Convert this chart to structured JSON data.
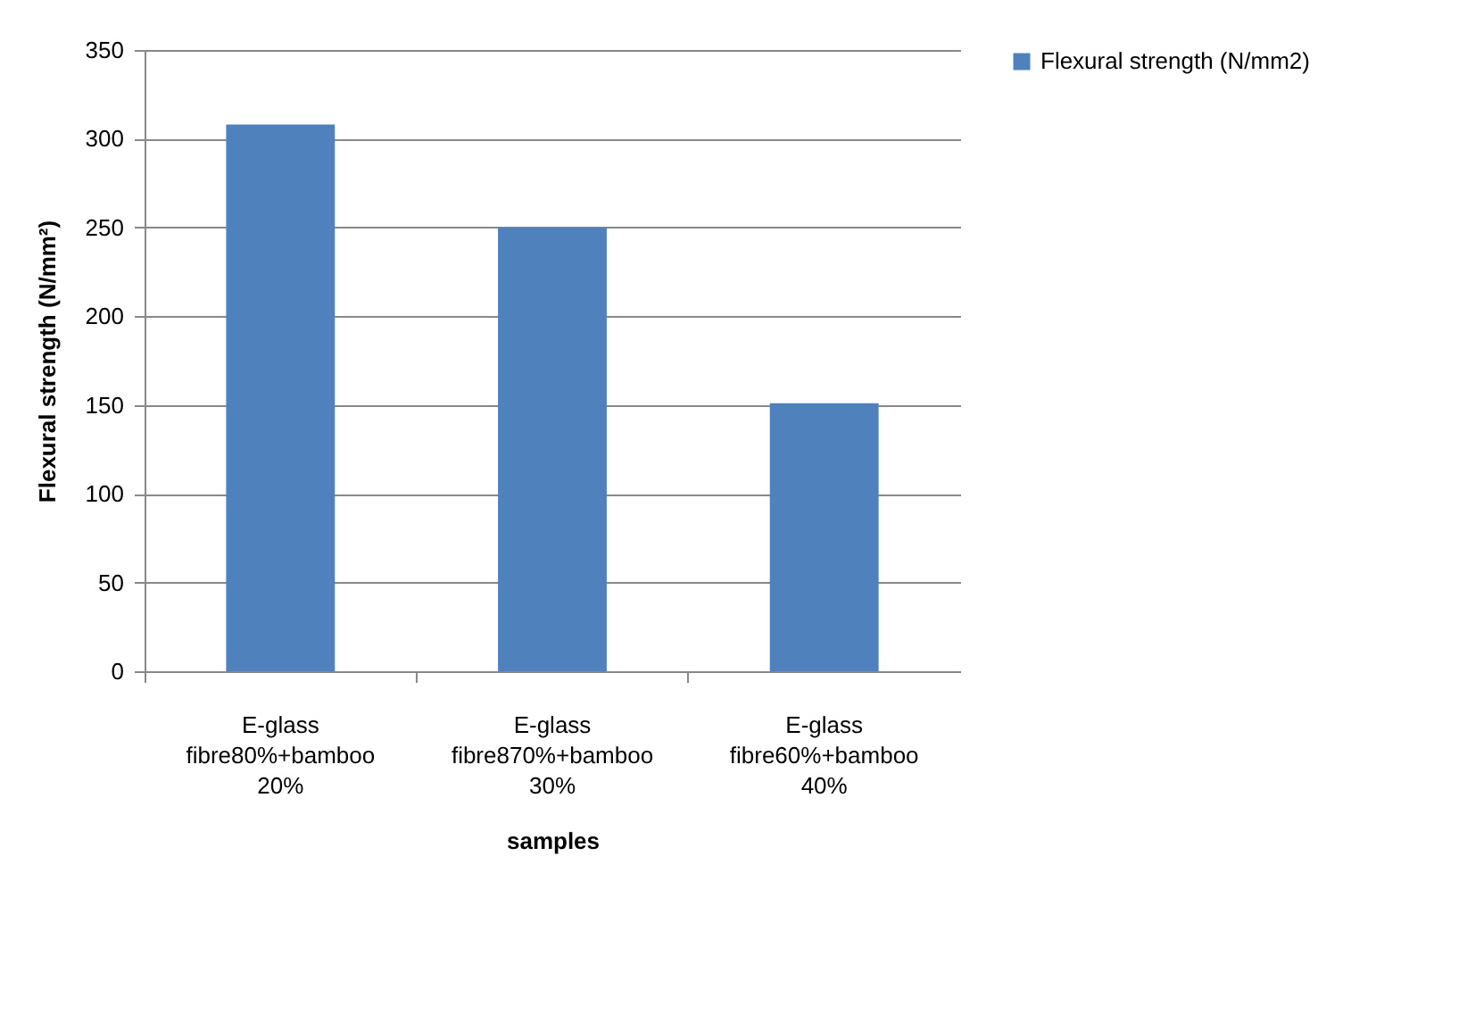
{
  "chart_data": {
    "type": "bar",
    "xlabel": "samples",
    "ylabel": "Flexural strength (N/mm²)",
    "categories": [
      "E-glass fibre80%+bamboo 20%",
      "E-glass fibre870%+bamboo 30%",
      "E-glass fibre60%+bamboo 40%"
    ],
    "series": [
      {
        "name": "Flexural strength (N/mm2)",
        "color": "#4f81bd",
        "values": [
          308,
          250,
          151
        ]
      }
    ],
    "ylim": [
      0,
      350
    ],
    "yticks": [
      0,
      50,
      100,
      150,
      200,
      250,
      300,
      350
    ],
    "grid": "y",
    "legend": "right"
  }
}
